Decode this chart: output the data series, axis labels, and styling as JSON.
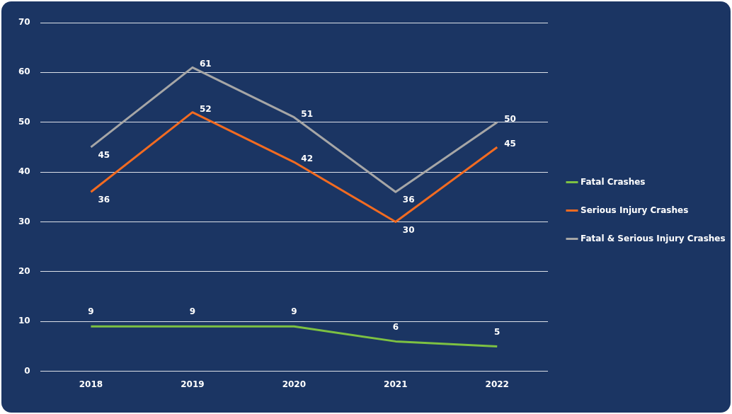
{
  "chart_data": {
    "type": "line",
    "categories": [
      "2018",
      "2019",
      "2020",
      "2021",
      "2022"
    ],
    "series": [
      {
        "name": "Fatal Crashes",
        "color": "#7dc142",
        "values": [
          9,
          9,
          9,
          6,
          5
        ]
      },
      {
        "name": "Serious Injury Crashes",
        "color": "#f26b21",
        "values": [
          36,
          52,
          42,
          30,
          45
        ]
      },
      {
        "name": "Fatal & Serious Injury Crashes",
        "color": "#a6a6a6",
        "values": [
          45,
          61,
          51,
          36,
          50
        ]
      }
    ],
    "ylim": [
      0,
      70
    ],
    "yticks": [
      0,
      10,
      20,
      30,
      40,
      50,
      60,
      70
    ],
    "grid": "y",
    "legend": "right",
    "data_labels": true,
    "marker": "none",
    "line_style": "solid"
  }
}
